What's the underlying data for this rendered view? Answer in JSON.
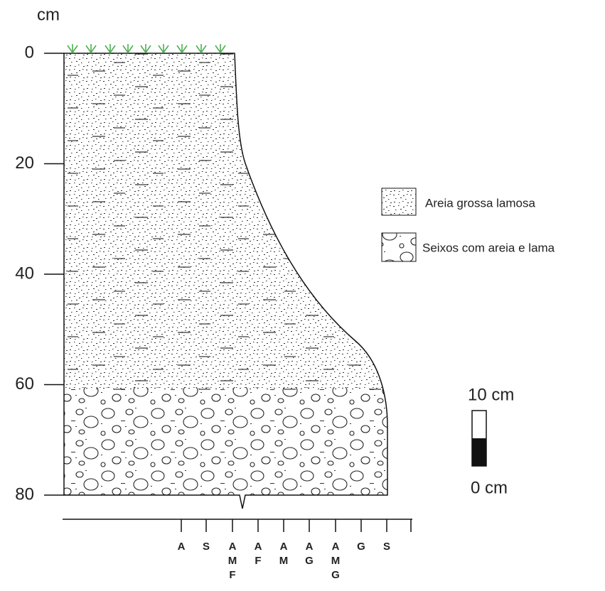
{
  "depth_axis": {
    "unit": "cm",
    "range": [
      0,
      80
    ],
    "ticks": [
      0,
      20,
      40,
      60,
      80
    ]
  },
  "legend": [
    {
      "label": "Areia grossa lamosa"
    },
    {
      "label": "Seixos com areia e lama"
    }
  ],
  "scale_bar": {
    "top_label": "10 cm",
    "bottom_label": "0 cm"
  },
  "grain_size_labels": [
    [
      "A"
    ],
    [
      "S"
    ],
    [
      "A",
      "M",
      "F"
    ],
    [
      "A",
      "F"
    ],
    [
      "A",
      "M"
    ],
    [
      "A",
      "G"
    ],
    [
      "A",
      "M",
      "G"
    ],
    [
      "G"
    ],
    [
      "S"
    ]
  ]
}
